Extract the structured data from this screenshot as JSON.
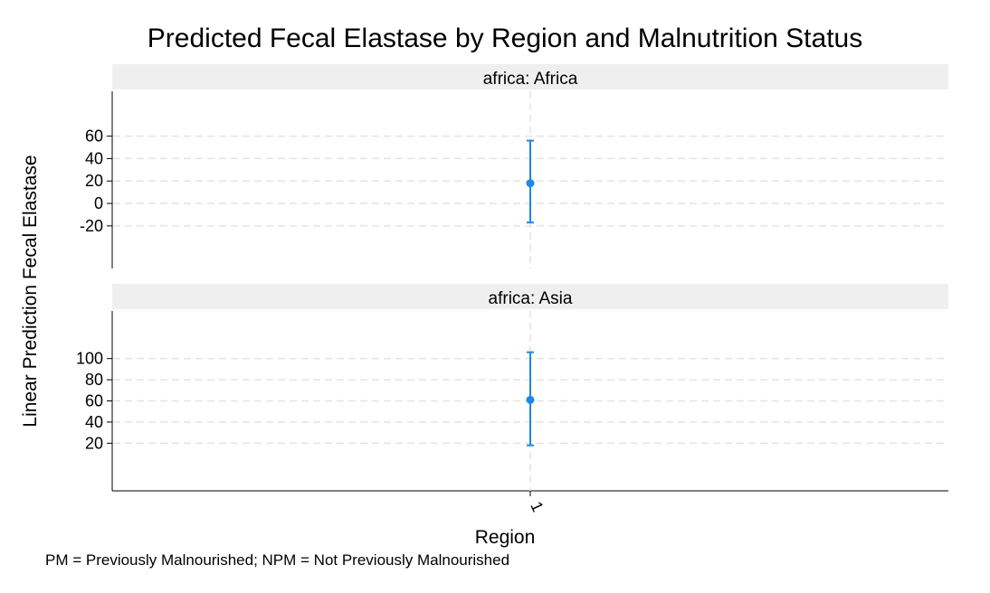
{
  "chart_data": {
    "type": "scatter",
    "title": "Predicted Fecal Elastase by Region and Malnutrition Status",
    "ylabel": "Linear Prediction Fecal Elastase",
    "xlabel": "Region",
    "note": "PM = Previously Malnourished; NPM = Not Previously Malnourished",
    "x_ticks": [
      "1"
    ],
    "grid": "dashed horizontal at y ticks",
    "colors": {
      "marker": "#1e88e5",
      "strip": "#efefef",
      "grid": "#e4e4e4"
    },
    "panels": [
      {
        "label": "africa: Africa",
        "ylim": [
          -58,
          100
        ],
        "yticks": [
          60,
          40,
          20,
          0,
          -20
        ],
        "points": [
          {
            "x": "1",
            "y": 18,
            "ci": [
              -17,
              56
            ]
          }
        ]
      },
      {
        "label": "africa: Asia",
        "ylim": [
          -25,
          145
        ],
        "yticks": [
          100,
          80,
          60,
          40,
          20
        ],
        "points": [
          {
            "x": "1",
            "y": 61,
            "ci": [
              18,
              106
            ]
          }
        ]
      }
    ]
  }
}
